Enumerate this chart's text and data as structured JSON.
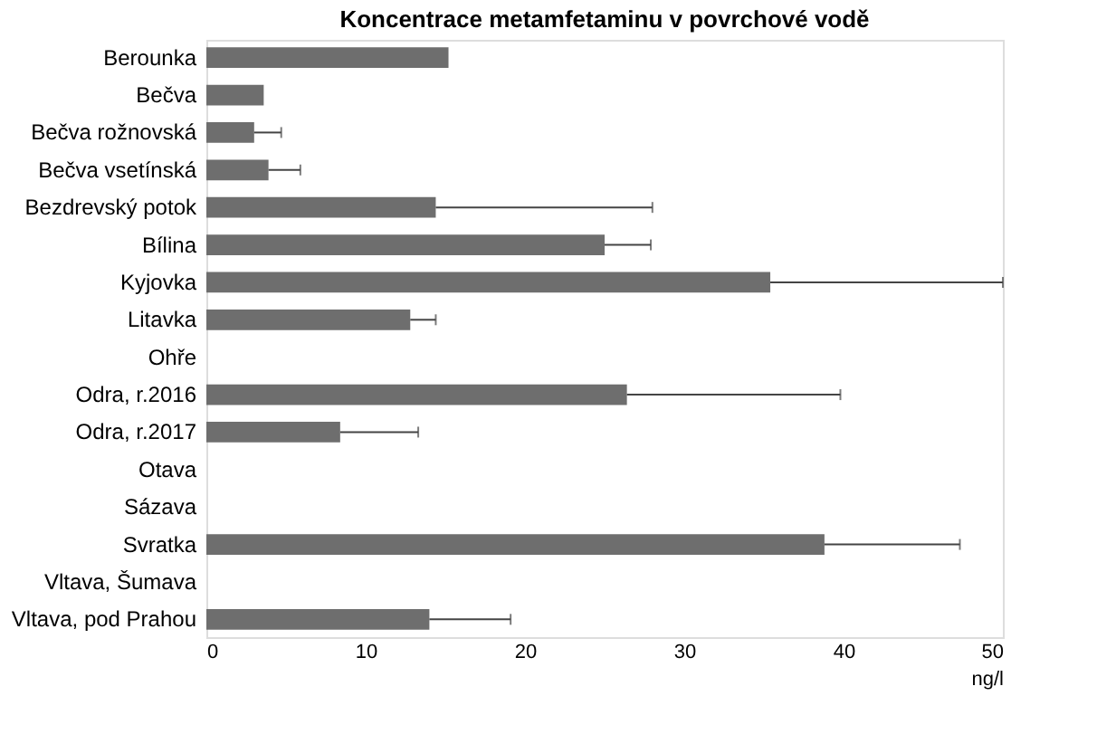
{
  "chart_data": {
    "type": "bar",
    "orientation": "horizontal",
    "title": "Koncentrace metamfetaminu v povrchové vodě",
    "xlabel": "ng/l",
    "categories": [
      "Berounka",
      "Bečva",
      "Bečva rožnovská",
      "Bečva vsetínská",
      "Bezdrevský potok",
      "Bílina",
      "Kyjovka",
      "Litavka",
      "Ohře",
      "Odra, r.2016",
      "Odra, r.2017",
      "Otava",
      "Sázava",
      "Svratka",
      "Vltava, Šumava",
      "Vltava, pod Prahou"
    ],
    "values": [
      15.2,
      3.6,
      3.0,
      3.9,
      14.4,
      25.0,
      35.4,
      12.8,
      null,
      26.4,
      8.4,
      null,
      null,
      38.8,
      null,
      14.0
    ],
    "errors": [
      null,
      null,
      [
        3.0,
        4.7
      ],
      [
        3.9,
        5.9
      ],
      [
        14.4,
        28.0
      ],
      [
        25.0,
        27.9
      ],
      [
        35.4,
        50.0
      ],
      [
        12.8,
        14.4
      ],
      null,
      [
        26.4,
        39.8
      ],
      [
        8.4,
        13.3
      ],
      null,
      null,
      [
        38.8,
        47.3
      ],
      null,
      [
        14.0,
        19.1
      ]
    ],
    "color": "#6e6e6e",
    "xlim": [
      0,
      50
    ],
    "xticks": [
      0,
      10,
      20,
      30,
      40,
      50
    ],
    "grid": false
  }
}
